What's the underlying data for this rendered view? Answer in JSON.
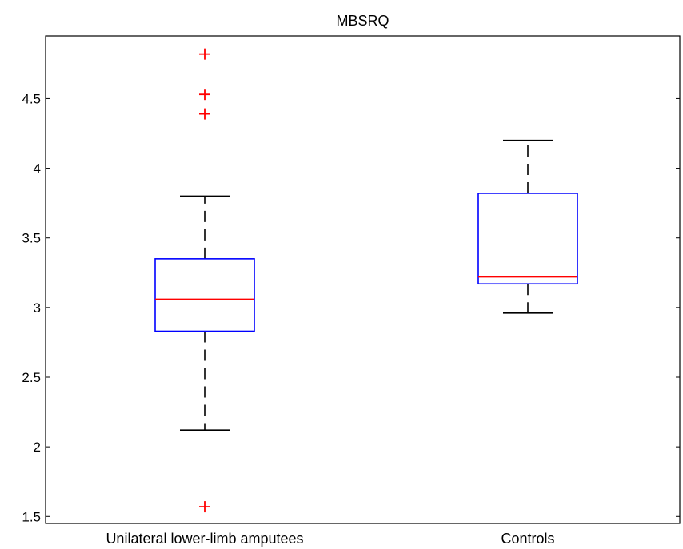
{
  "chart_data": {
    "type": "box",
    "title": "MBSRQ",
    "xlabel": "",
    "ylabel": "",
    "ylim": [
      1.45,
      4.95
    ],
    "yticks": [
      1.5,
      2,
      2.5,
      3,
      3.5,
      4,
      4.5
    ],
    "ytick_labels": [
      "1.5",
      "2",
      "2.5",
      "3",
      "3.5",
      "4",
      "4.5"
    ],
    "categories": [
      "Unilateral lower-limb amputees",
      "Controls"
    ],
    "boxes": [
      {
        "category": "Unilateral lower-limb amputees",
        "whisker_low": 2.12,
        "q1": 2.83,
        "median": 3.06,
        "q3": 3.35,
        "whisker_high": 3.8,
        "outliers": [
          1.57,
          4.39,
          4.53,
          4.82
        ]
      },
      {
        "category": "Controls",
        "whisker_low": 2.96,
        "q1": 3.17,
        "median": 3.22,
        "q3": 3.82,
        "whisker_high": 4.2,
        "outliers": []
      }
    ],
    "colors": {
      "box": "#0000ff",
      "median": "#ff0000",
      "whisker": "#000000",
      "outlier": "#ff0000"
    },
    "grid": false
  }
}
